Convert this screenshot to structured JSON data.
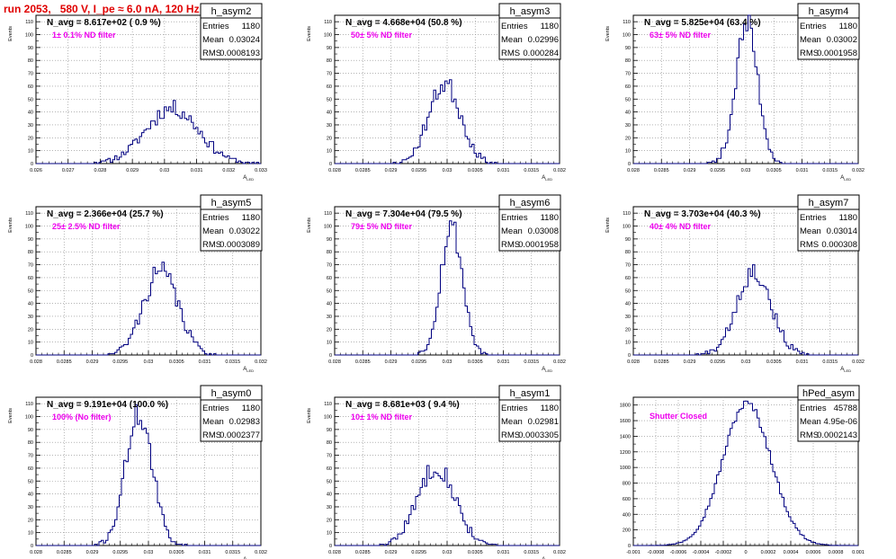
{
  "page": {
    "title": "run 2053,   580 V, I_pe ≈ 6.0 nA, 120 Hz",
    "colors": {
      "title": "#e00000",
      "hist": "#000080",
      "note": "#ee00ee"
    }
  },
  "chart_data": [
    {
      "type": "histogram",
      "name": "h_asym2",
      "navg": "N_avg = 8.617e+02 ( 0.9 %)",
      "note": "1± 0.1% ND filter",
      "stats": {
        "Entries": "1180",
        "Mean": "0.03024",
        "RMS": "0.0008193"
      },
      "ylabel": "Events",
      "xlabel": "A_{LED}",
      "xlim": [
        0.026,
        0.033
      ],
      "ylim": [
        0,
        115
      ],
      "yticks": [
        0,
        10,
        20,
        30,
        40,
        50,
        60,
        70,
        80,
        90,
        100,
        110
      ],
      "xticks": [
        0.026,
        0.027,
        0.028,
        0.029,
        0.03,
        0.031,
        0.032,
        0.033
      ],
      "xticklabels": [
        "0.026",
        "0.027",
        "0.028",
        "0.029",
        "0.03",
        "0.031",
        "0.032",
        "0.033"
      ],
      "center": 0.03024,
      "sigma": 0.00082,
      "peak": 43,
      "nbins": 100,
      "seed": 11
    },
    {
      "type": "histogram",
      "name": "h_asym3",
      "navg": "N_avg = 4.668e+04 (50.8 %)",
      "note": "50± 5% ND filter",
      "stats": {
        "Entries": "1180",
        "Mean": "0.02996",
        "RMS": "0.000284"
      },
      "ylabel": "Events",
      "xlabel": "A_{LED}",
      "xlim": [
        0.028,
        0.032
      ],
      "ylim": [
        0,
        115
      ],
      "yticks": [
        0,
        10,
        20,
        30,
        40,
        50,
        60,
        70,
        80,
        90,
        100,
        110
      ],
      "xticks": [
        0.028,
        0.0285,
        0.029,
        0.0295,
        0.03,
        0.0305,
        0.031,
        0.0315,
        0.032
      ],
      "xticklabels": [
        "0.028",
        "0.0285",
        "0.029",
        "0.0295",
        "0.03",
        "0.0305",
        "0.031",
        "0.0315",
        "0.032"
      ],
      "center": 0.02996,
      "sigma": 0.000284,
      "peak": 62,
      "nbins": 100,
      "seed": 23
    },
    {
      "type": "histogram",
      "name": "h_asym4",
      "navg": "N_avg = 5.825e+04 (63.4 %)",
      "note": "63± 5% ND filter",
      "stats": {
        "Entries": "1180",
        "Mean": "0.03002",
        "RMS": "0.0001958"
      },
      "ylabel": "Events",
      "xlabel": "A_{LED}",
      "xlim": [
        0.028,
        0.032
      ],
      "ylim": [
        0,
        115
      ],
      "yticks": [
        0,
        10,
        20,
        30,
        40,
        50,
        60,
        70,
        80,
        90,
        100,
        110
      ],
      "xticks": [
        0.028,
        0.0285,
        0.029,
        0.0295,
        0.03,
        0.0305,
        0.031,
        0.0315,
        0.032
      ],
      "xticklabels": [
        "0.028",
        "0.0285",
        "0.029",
        "0.0295",
        "0.03",
        "0.0305",
        "0.031",
        "0.0315",
        "0.032"
      ],
      "center": 0.03002,
      "sigma": 0.000196,
      "peak": 108,
      "nbins": 100,
      "seed": 37
    },
    {
      "type": "histogram",
      "name": "h_asym5",
      "navg": "N_avg = 2.366e+04 (25.7 %)",
      "note": "25± 2.5% ND filter",
      "stats": {
        "Entries": "1180",
        "Mean": "0.03022",
        "RMS": "0.0003089"
      },
      "ylabel": "Events",
      "xlabel": "A_{LED}",
      "xlim": [
        0.028,
        0.032
      ],
      "ylim": [
        0,
        115
      ],
      "yticks": [
        0,
        10,
        20,
        30,
        40,
        50,
        60,
        70,
        80,
        90,
        100,
        110
      ],
      "xticks": [
        0.028,
        0.0285,
        0.029,
        0.0295,
        0.03,
        0.0305,
        0.031,
        0.0315,
        0.032
      ],
      "xticklabels": [
        "0.028",
        "0.0285",
        "0.029",
        "0.0295",
        "0.03",
        "0.0305",
        "0.031",
        "0.0315",
        "0.032"
      ],
      "center": 0.03022,
      "sigma": 0.000309,
      "peak": 65,
      "nbins": 100,
      "seed": 41
    },
    {
      "type": "histogram",
      "name": "h_asym6",
      "navg": "N_avg = 7.304e+04 (79.5 %)",
      "note": "79± 5% ND filter",
      "stats": {
        "Entries": "1180",
        "Mean": "0.03008",
        "RMS": "0.0001958"
      },
      "ylabel": "Events",
      "xlabel": "A_{LED}",
      "xlim": [
        0.028,
        0.032
      ],
      "ylim": [
        0,
        115
      ],
      "yticks": [
        0,
        10,
        20,
        30,
        40,
        50,
        60,
        70,
        80,
        90,
        100,
        110
      ],
      "xticks": [
        0.028,
        0.0285,
        0.029,
        0.0295,
        0.03,
        0.0305,
        0.031,
        0.0315,
        0.032
      ],
      "xticklabels": [
        "0.028",
        "0.0285",
        "0.029",
        "0.0295",
        "0.03",
        "0.0305",
        "0.031",
        "0.0315",
        "0.032"
      ],
      "center": 0.03008,
      "sigma": 0.000196,
      "peak": 100,
      "nbins": 100,
      "seed": 53
    },
    {
      "type": "histogram",
      "name": "h_asym7",
      "navg": "N_avg = 3.703e+04 (40.3 %)",
      "note": "40± 4% ND filter",
      "stats": {
        "Entries": "1180",
        "Mean": "0.03014",
        "RMS": "0.000308"
      },
      "ylabel": "Events",
      "xlabel": "A_{LED}",
      "xlim": [
        0.028,
        0.032
      ],
      "ylim": [
        0,
        115
      ],
      "yticks": [
        0,
        10,
        20,
        30,
        40,
        50,
        60,
        70,
        80,
        90,
        100,
        110
      ],
      "xticks": [
        0.028,
        0.0285,
        0.029,
        0.0295,
        0.03,
        0.0305,
        0.031,
        0.0315,
        0.032
      ],
      "xticklabels": [
        "0.028",
        "0.0285",
        "0.029",
        "0.0295",
        "0.03",
        "0.0305",
        "0.031",
        "0.0315",
        "0.032"
      ],
      "center": 0.03014,
      "sigma": 0.000308,
      "peak": 65,
      "nbins": 100,
      "seed": 67
    },
    {
      "type": "histogram",
      "name": "h_asym0",
      "navg": "N_avg = 9.191e+04 (100.0 %)",
      "note": "100% (No filter)",
      "stats": {
        "Entries": "1180",
        "Mean": "0.02983",
        "RMS": "0.0002377"
      },
      "ylabel": "Events",
      "xlabel": "A_{LED}",
      "xlim": [
        0.028,
        0.032
      ],
      "ylim": [
        0,
        115
      ],
      "yticks": [
        0,
        10,
        20,
        30,
        40,
        50,
        60,
        70,
        80,
        90,
        100,
        110
      ],
      "xticks": [
        0.028,
        0.0285,
        0.029,
        0.0295,
        0.03,
        0.0305,
        0.031,
        0.0315,
        0.032
      ],
      "xticklabels": [
        "0.028",
        "0.0285",
        "0.029",
        "0.0295",
        "0.03",
        "0.0305",
        "0.031",
        "0.0315",
        "0.032"
      ],
      "center": 0.02983,
      "sigma": 0.000238,
      "peak": 102,
      "nbins": 100,
      "seed": 71
    },
    {
      "type": "histogram",
      "name": "h_asym1",
      "navg": "N_avg = 8.681e+03 ( 9.4 %)",
      "note": "10± 1% ND filter",
      "stats": {
        "Entries": "1180",
        "Mean": "0.02981",
        "RMS": "0.0003305"
      },
      "ylabel": "Events",
      "xlabel": "A_{LED}",
      "xlim": [
        0.028,
        0.032
      ],
      "ylim": [
        0,
        115
      ],
      "yticks": [
        0,
        10,
        20,
        30,
        40,
        50,
        60,
        70,
        80,
        90,
        100,
        110
      ],
      "xticks": [
        0.028,
        0.0285,
        0.029,
        0.0295,
        0.03,
        0.0305,
        0.031,
        0.0315,
        0.032
      ],
      "xticklabels": [
        "0.028",
        "0.0285",
        "0.029",
        "0.0295",
        "0.03",
        "0.0305",
        "0.031",
        "0.0315",
        "0.032"
      ],
      "center": 0.02981,
      "sigma": 0.00033,
      "peak": 62,
      "nbins": 100,
      "seed": 83
    },
    {
      "type": "histogram",
      "name": "hPed_asym",
      "navg": "",
      "note": "Shutter Closed",
      "stats": {
        "Entries": "45788",
        "Mean": "4.95e-06",
        "RMS": "0.0002143"
      },
      "ylabel": "",
      "xlabel": "",
      "xlim": [
        -0.001,
        0.001
      ],
      "ylim": [
        0,
        1900
      ],
      "yticks": [
        0,
        200,
        400,
        600,
        800,
        1000,
        1200,
        1400,
        1600,
        1800
      ],
      "xticks": [
        -0.001,
        -0.0008,
        -0.0006,
        -0.0004,
        -0.0002,
        0,
        0.0002,
        0.0004,
        0.0006,
        0.0008,
        0.001
      ],
      "xticklabels": [
        "-0.001",
        "-0.0008",
        "-0.0006",
        "-0.0004",
        "-0.0002",
        "0",
        "0.0002",
        "0.0004",
        "0.0006",
        "0.0008",
        "0.001"
      ],
      "center": 1e-05,
      "sigma": 0.000215,
      "peak": 1820,
      "nbins": 100,
      "seed": 97
    }
  ]
}
